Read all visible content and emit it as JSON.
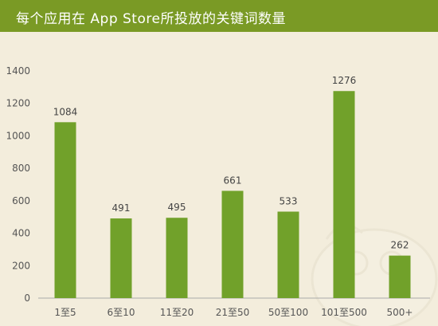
{
  "header": {
    "title": "每个应用在 App Store所投放的关键词数量"
  },
  "colors": {
    "bar": "#71a12a",
    "title_bar": "#7a9a25",
    "background": "#f3eddc",
    "axis": "#aaaaaa"
  },
  "chart_data": {
    "type": "bar",
    "title": "每个应用在 App Store所投放的关键词数量",
    "xlabel": "",
    "ylabel": "",
    "categories": [
      "1至5",
      "6至10",
      "11至20",
      "21至50",
      "50至100",
      "101至500",
      "500+"
    ],
    "values": [
      1084,
      491,
      495,
      661,
      533,
      1276,
      262
    ],
    "ylim": [
      0,
      1400
    ],
    "yticks": [
      0,
      200,
      400,
      600,
      800,
      1000,
      1200,
      1400
    ],
    "grid": false,
    "legend": "none",
    "data_labels": true
  }
}
